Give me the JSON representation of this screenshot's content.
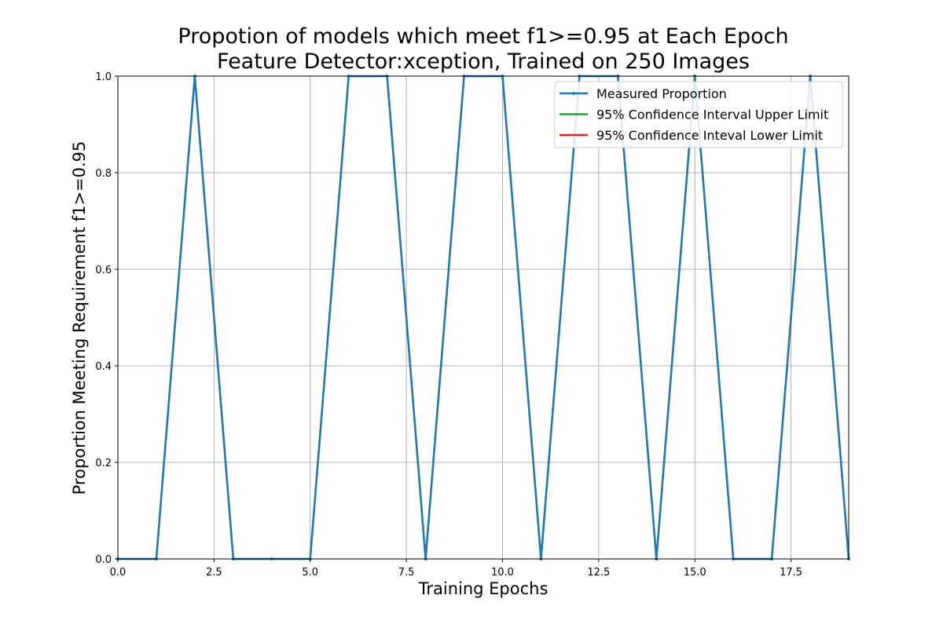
{
  "chart_data": {
    "type": "line",
    "title": "Propotion of models which meet f1>=0.95 at Each Epoch",
    "subtitle": "Feature Detector:xception, Trained on 250 Images",
    "xlabel": "Training Epochs",
    "ylabel": "Proportion Meeting Requirement f1>=0.95",
    "xlim": [
      0,
      19
    ],
    "ylim": [
      0,
      1.0
    ],
    "x_ticks": [
      "0.0",
      "2.5",
      "5.0",
      "7.5",
      "10.0",
      "12.5",
      "15.0",
      "17.5"
    ],
    "y_ticks": [
      "0.0",
      "0.2",
      "0.4",
      "0.6",
      "0.8",
      "1.0"
    ],
    "grid": true,
    "legend_position": "top-right",
    "series": [
      {
        "name": "Measured Proportion",
        "color": "#1f77b4",
        "marker": "dot",
        "x": [
          0,
          1,
          2,
          3,
          4,
          5,
          6,
          7,
          8,
          9,
          10,
          11,
          12,
          13,
          14,
          15,
          16,
          17,
          18,
          19
        ],
        "values": [
          0,
          0,
          1,
          0,
          0,
          0,
          1,
          1,
          0,
          1,
          1,
          0,
          1,
          1,
          0,
          1,
          0,
          0,
          1,
          0
        ]
      },
      {
        "name": "95% Confidence Interval Upper Limit",
        "color": "#2ca02c",
        "x": [],
        "values": []
      },
      {
        "name": "95% Confidence Inteval Lower Limit",
        "color": "#d62728",
        "x": [],
        "values": []
      }
    ]
  }
}
